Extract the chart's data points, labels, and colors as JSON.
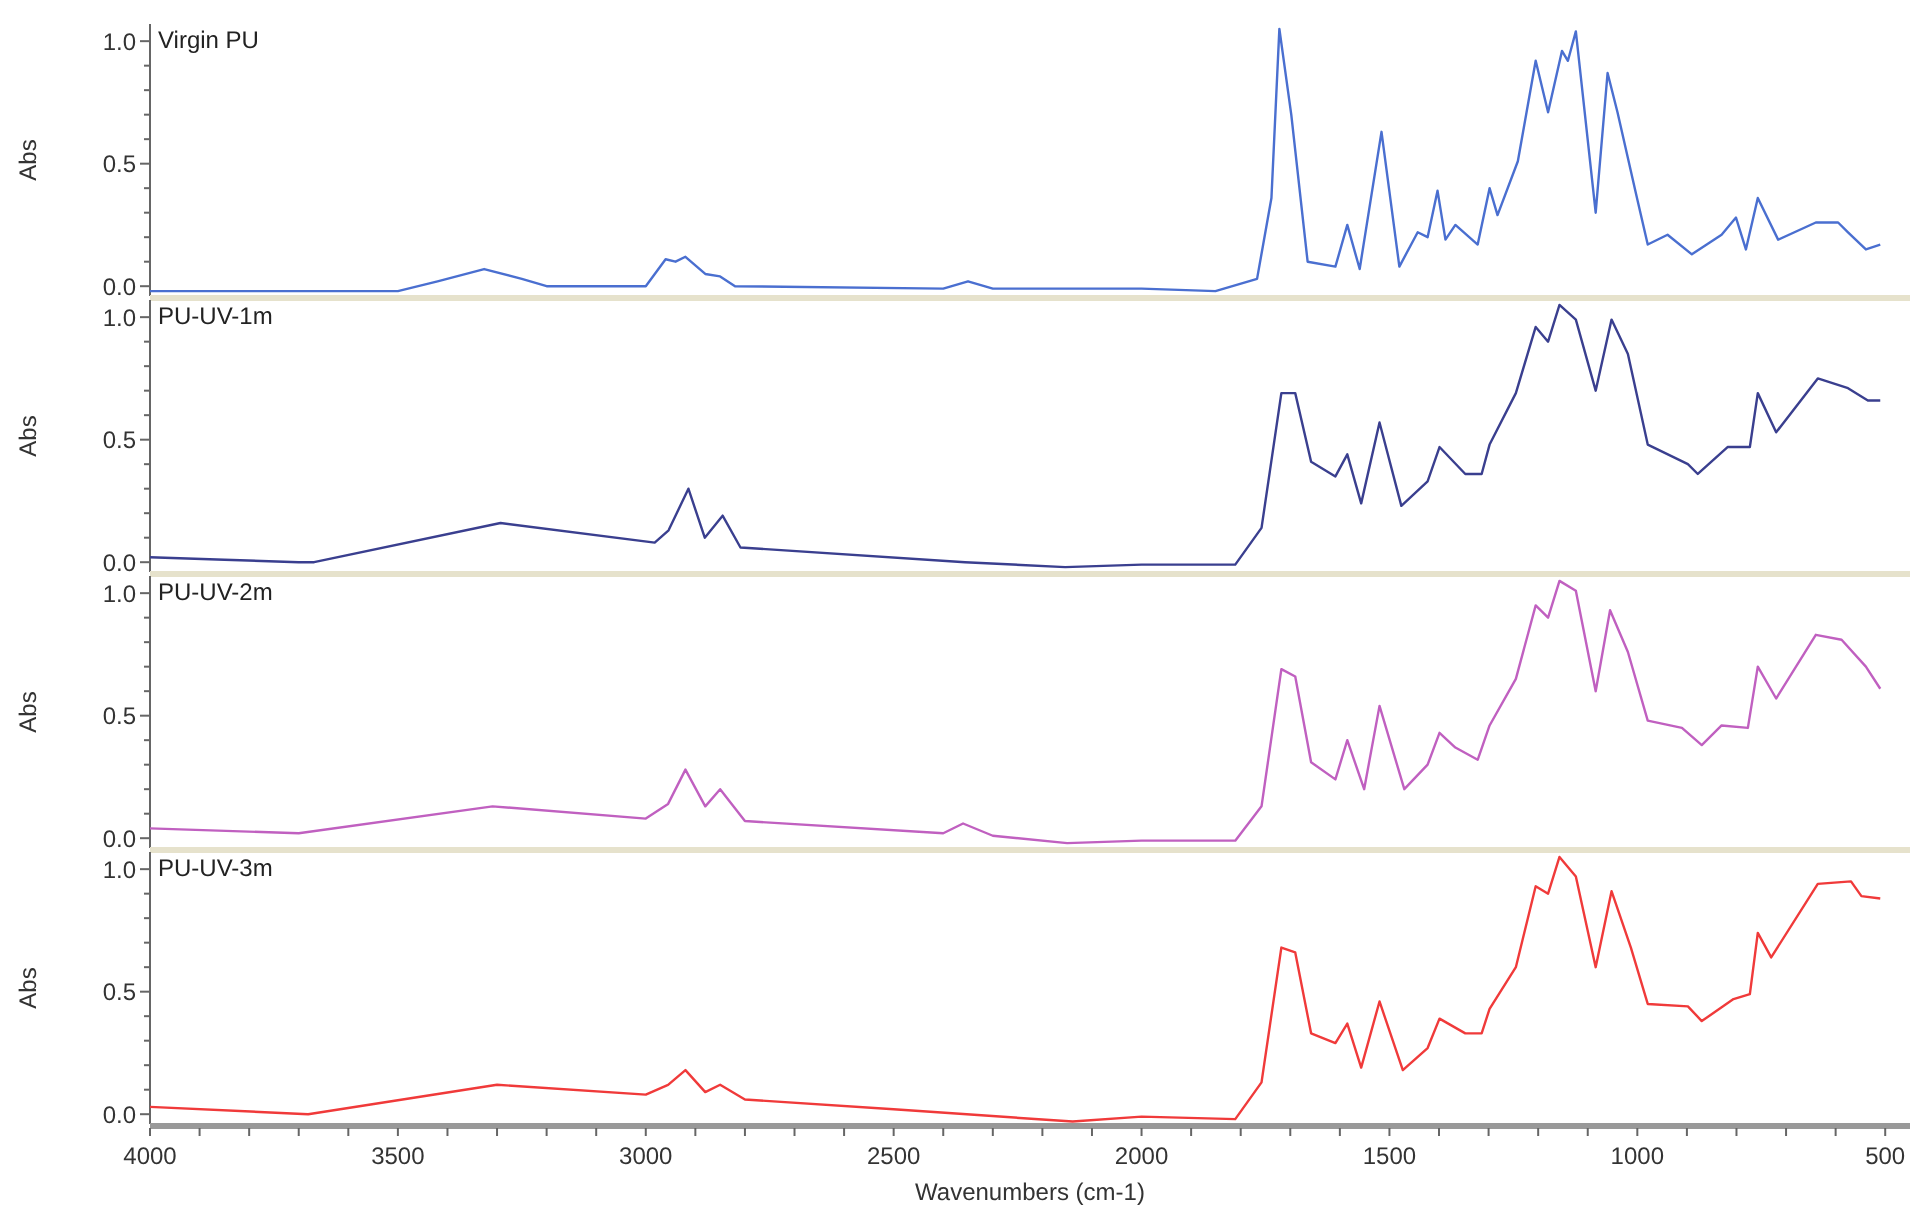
{
  "chart_data": [
    {
      "type": "line",
      "title": "Virgin PU",
      "ylabel": "Abs",
      "xlim": [
        4000,
        450
      ],
      "ylim": [
        -0.04,
        1.07
      ],
      "tick_labels": "y",
      "yticks": [
        {
          "value": 0,
          "label": "0.0"
        },
        {
          "value": 0.1,
          "label": null
        },
        {
          "value": 0.2,
          "label": null
        },
        {
          "value": 0.3,
          "label": null
        },
        {
          "value": 0.4,
          "label": null
        },
        {
          "value": 0.5,
          "label": "0.5"
        },
        {
          "value": 0.6,
          "label": null
        },
        {
          "value": 0.7,
          "label": null
        },
        {
          "value": 0.8,
          "label": null
        },
        {
          "value": 0.9,
          "label": null
        },
        {
          "value": 1,
          "label": "1.0"
        }
      ],
      "series": [
        {
          "color": "#4a6fd0",
          "x": [
            4000,
            3700,
            3500,
            3420,
            3326,
            3250,
            3200,
            3000,
            2960,
            2940,
            2920,
            2880,
            2850,
            2820,
            2400,
            2350,
            2300,
            2000,
            1851,
            1767,
            1738,
            1722,
            1698,
            1665,
            1609,
            1585,
            1560,
            1516,
            1480,
            1443,
            1423,
            1403,
            1387,
            1367,
            1322,
            1298,
            1282,
            1241,
            1205,
            1180,
            1152,
            1140,
            1124,
            1084,
            1060,
            1040,
            1003,
            979,
            939,
            890,
            830,
            801,
            781,
            757,
            716,
            640,
            595,
            575,
            539,
            510
          ],
          "values": [
            -0.02,
            -0.02,
            -0.02,
            0.02,
            0.07,
            0.03,
            0.0,
            0.0,
            0.11,
            0.1,
            0.12,
            0.05,
            0.04,
            0.0,
            -0.01,
            0.02,
            -0.01,
            -0.01,
            -0.02,
            0.03,
            0.36,
            1.05,
            0.7,
            0.1,
            0.08,
            0.25,
            0.07,
            0.63,
            0.08,
            0.22,
            0.2,
            0.39,
            0.19,
            0.25,
            0.17,
            0.4,
            0.29,
            0.51,
            0.92,
            0.71,
            0.96,
            0.92,
            1.04,
            0.3,
            0.87,
            0.71,
            0.38,
            0.17,
            0.21,
            0.13,
            0.21,
            0.28,
            0.15,
            0.36,
            0.19,
            0.26,
            0.26,
            0.22,
            0.15,
            0.17
          ]
        }
      ]
    },
    {
      "type": "line",
      "title": "PU-UV-1m",
      "ylabel": "Abs",
      "xlim": [
        4000,
        450
      ],
      "ylim": [
        -0.04,
        1.07
      ],
      "tick_labels": "y",
      "yticks": [
        {
          "value": 0,
          "label": "0.0"
        },
        {
          "value": 0.1,
          "label": null
        },
        {
          "value": 0.2,
          "label": null
        },
        {
          "value": 0.3,
          "label": null
        },
        {
          "value": 0.4,
          "label": null
        },
        {
          "value": 0.5,
          "label": "0.5"
        },
        {
          "value": 0.6,
          "label": null
        },
        {
          "value": 0.7,
          "label": null
        },
        {
          "value": 0.8,
          "label": null
        },
        {
          "value": 0.9,
          "label": null
        },
        {
          "value": 1,
          "label": "1.0"
        }
      ],
      "series": [
        {
          "color": "#3a3f8f",
          "x": [
            4000,
            3850,
            3700,
            3669,
            3293,
            2982,
            2954,
            2914,
            2881,
            2845,
            2809,
            2356,
            2154,
            2000,
            1811,
            1758,
            1718,
            1690,
            1658,
            1609,
            1585,
            1557,
            1520,
            1476,
            1423,
            1399,
            1347,
            1314,
            1298,
            1245,
            1205,
            1180,
            1157,
            1124,
            1084,
            1052,
            1019,
            979,
            898,
            878,
            818,
            773,
            757,
            720,
            636,
            575,
            535,
            510
          ],
          "values": [
            0.02,
            0.01,
            0.0,
            0.0,
            0.16,
            0.08,
            0.13,
            0.3,
            0.1,
            0.19,
            0.06,
            0.0,
            -0.02,
            -0.01,
            -0.01,
            0.14,
            0.69,
            0.69,
            0.41,
            0.35,
            0.44,
            0.24,
            0.57,
            0.23,
            0.33,
            0.47,
            0.36,
            0.36,
            0.48,
            0.69,
            0.96,
            0.9,
            1.05,
            0.99,
            0.7,
            0.99,
            0.85,
            0.48,
            0.4,
            0.36,
            0.47,
            0.47,
            0.69,
            0.53,
            0.75,
            0.71,
            0.66,
            0.66
          ]
        }
      ]
    },
    {
      "type": "line",
      "title": "PU-UV-2m",
      "ylabel": "Abs",
      "xlim": [
        4000,
        450
      ],
      "ylim": [
        -0.04,
        1.07
      ],
      "tick_labels": "y",
      "yticks": [
        {
          "value": 0,
          "label": "0.0"
        },
        {
          "value": 0.1,
          "label": null
        },
        {
          "value": 0.2,
          "label": null
        },
        {
          "value": 0.3,
          "label": null
        },
        {
          "value": 0.4,
          "label": null
        },
        {
          "value": 0.5,
          "label": "0.5"
        },
        {
          "value": 0.6,
          "label": null
        },
        {
          "value": 0.7,
          "label": null
        },
        {
          "value": 0.8,
          "label": null
        },
        {
          "value": 0.9,
          "label": null
        },
        {
          "value": 1,
          "label": "1.0"
        }
      ],
      "series": [
        {
          "color": "#c060c0",
          "x": [
            4000,
            3700,
            3309,
            3000,
            2955,
            2920,
            2880,
            2850,
            2800,
            2400,
            2360,
            2300,
            2150,
            2000,
            1811,
            1758,
            1718,
            1690,
            1658,
            1609,
            1585,
            1551,
            1520,
            1470,
            1423,
            1399,
            1367,
            1322,
            1298,
            1245,
            1205,
            1180,
            1157,
            1124,
            1084,
            1055,
            1019,
            979,
            910,
            870,
            830,
            777,
            757,
            720,
            640,
            588,
            539,
            510
          ],
          "values": [
            0.04,
            0.02,
            0.13,
            0.08,
            0.14,
            0.28,
            0.13,
            0.2,
            0.07,
            0.02,
            0.06,
            0.01,
            -0.02,
            -0.01,
            -0.01,
            0.13,
            0.69,
            0.66,
            0.31,
            0.24,
            0.4,
            0.2,
            0.54,
            0.2,
            0.3,
            0.43,
            0.37,
            0.32,
            0.46,
            0.65,
            0.95,
            0.9,
            1.05,
            1.01,
            0.6,
            0.93,
            0.76,
            0.48,
            0.45,
            0.38,
            0.46,
            0.45,
            0.7,
            0.57,
            0.83,
            0.81,
            0.7,
            0.61
          ]
        }
      ]
    },
    {
      "type": "line",
      "title": "PU-UV-3m",
      "ylabel": "Abs",
      "xlabel": "Wavenumbers (cm-1)",
      "xlim": [
        4000,
        450
      ],
      "ylim": [
        -0.04,
        1.07
      ],
      "xticks": [
        4000,
        {
          "value": 3900,
          "label": null
        },
        {
          "value": 3800,
          "label": null
        },
        {
          "value": 3700,
          "label": null
        },
        {
          "value": 3600,
          "label": null
        },
        3500,
        {
          "value": 3400,
          "label": null
        },
        {
          "value": 3300,
          "label": null
        },
        {
          "value": 3200,
          "label": null
        },
        {
          "value": 3100,
          "label": null
        },
        3000,
        {
          "value": 2900,
          "label": null
        },
        {
          "value": 2800,
          "label": null
        },
        {
          "value": 2700,
          "label": null
        },
        {
          "value": 2600,
          "label": null
        },
        2500,
        {
          "value": 2400,
          "label": null
        },
        {
          "value": 2300,
          "label": null
        },
        {
          "value": 2200,
          "label": null
        },
        {
          "value": 2100,
          "label": null
        },
        2000,
        {
          "value": 1900,
          "label": null
        },
        {
          "value": 1800,
          "label": null
        },
        {
          "value": 1700,
          "label": null
        },
        {
          "value": 1600,
          "label": null
        },
        1500,
        {
          "value": 1400,
          "label": null
        },
        {
          "value": 1300,
          "label": null
        },
        {
          "value": 1200,
          "label": null
        },
        {
          "value": 1100,
          "label": null
        },
        1000,
        {
          "value": 900,
          "label": null
        },
        {
          "value": 800,
          "label": null
        },
        {
          "value": 700,
          "label": null
        },
        {
          "value": 600,
          "label": null
        },
        500
      ],
      "yticks": [
        {
          "value": 0,
          "label": "0.0"
        },
        {
          "value": 0.1,
          "label": null
        },
        {
          "value": 0.2,
          "label": null
        },
        {
          "value": 0.3,
          "label": null
        },
        {
          "value": 0.4,
          "label": null
        },
        {
          "value": 0.5,
          "label": "0.5"
        },
        {
          "value": 0.6,
          "label": null
        },
        {
          "value": 0.7,
          "label": null
        },
        {
          "value": 0.8,
          "label": null
        },
        {
          "value": 0.9,
          "label": null
        },
        {
          "value": 1,
          "label": "1.0"
        }
      ],
      "series": [
        {
          "color": "#f03a3a",
          "x": [
            4000,
            3681,
            3300,
            3000,
            2955,
            2920,
            2880,
            2850,
            2800,
            2500,
            2139,
            2000,
            1811,
            1758,
            1718,
            1690,
            1658,
            1609,
            1585,
            1557,
            1520,
            1473,
            1423,
            1399,
            1347,
            1314,
            1298,
            1245,
            1205,
            1180,
            1157,
            1124,
            1084,
            1052,
            1013,
            979,
            898,
            870,
            806,
            773,
            757,
            730,
            636,
            569,
            548,
            510
          ],
          "values": [
            0.03,
            0.0,
            0.12,
            0.08,
            0.12,
            0.18,
            0.09,
            0.12,
            0.06,
            0.02,
            -0.03,
            -0.01,
            -0.02,
            0.13,
            0.68,
            0.66,
            0.33,
            0.29,
            0.37,
            0.19,
            0.46,
            0.18,
            0.27,
            0.39,
            0.33,
            0.33,
            0.43,
            0.6,
            0.93,
            0.9,
            1.05,
            0.97,
            0.6,
            0.91,
            0.68,
            0.45,
            0.44,
            0.38,
            0.47,
            0.49,
            0.74,
            0.64,
            0.94,
            0.95,
            0.89,
            0.88
          ]
        }
      ]
    }
  ]
}
